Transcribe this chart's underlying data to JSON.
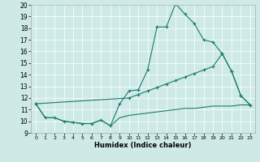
{
  "xlabel": "Humidex (Indice chaleur)",
  "bg_color": "#ceeae7",
  "line_color": "#1a7a6e",
  "xlim": [
    -0.5,
    23.5
  ],
  "ylim": [
    9,
    20
  ],
  "xticks": [
    0,
    1,
    2,
    3,
    4,
    5,
    6,
    7,
    8,
    9,
    10,
    11,
    12,
    13,
    14,
    15,
    16,
    17,
    18,
    19,
    20,
    21,
    22,
    23
  ],
  "yticks": [
    9,
    10,
    11,
    12,
    13,
    14,
    15,
    16,
    17,
    18,
    19,
    20
  ],
  "series1_x": [
    0,
    1,
    2,
    3,
    4,
    5,
    6,
    7,
    8,
    9,
    10,
    11,
    12,
    13,
    14,
    15,
    16,
    17,
    18,
    19,
    20,
    21,
    22,
    23
  ],
  "series1_y": [
    11.5,
    10.3,
    10.3,
    10.0,
    9.9,
    9.8,
    9.8,
    10.1,
    9.6,
    11.5,
    12.6,
    12.7,
    14.4,
    18.1,
    18.1,
    20.1,
    19.2,
    18.4,
    17.0,
    16.8,
    15.8,
    14.3,
    12.2,
    11.4
  ],
  "series2_x": [
    0,
    10,
    11,
    12,
    13,
    14,
    15,
    16,
    17,
    18,
    19,
    20,
    21,
    22,
    23
  ],
  "series2_y": [
    11.5,
    12.0,
    12.3,
    12.6,
    12.9,
    13.2,
    13.5,
    13.8,
    14.1,
    14.4,
    14.7,
    15.8,
    14.3,
    12.2,
    11.4
  ],
  "series3_x": [
    0,
    1,
    2,
    3,
    4,
    5,
    6,
    7,
    8,
    9,
    10,
    11,
    12,
    13,
    14,
    15,
    16,
    17,
    18,
    19,
    20,
    21,
    22,
    23
  ],
  "series3_y": [
    11.5,
    10.3,
    10.3,
    10.0,
    9.9,
    9.8,
    9.8,
    10.1,
    9.6,
    10.3,
    10.5,
    10.6,
    10.7,
    10.8,
    10.9,
    11.0,
    11.1,
    11.1,
    11.2,
    11.3,
    11.3,
    11.3,
    11.4,
    11.4
  ]
}
